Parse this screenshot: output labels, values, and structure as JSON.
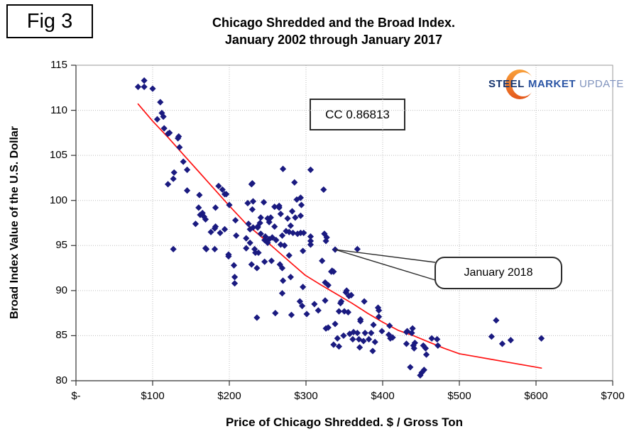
{
  "fig_label": "Fig 3",
  "title": {
    "line1": "Chicago Shredded and the Broad Index.",
    "line2": "January 2002 through January 2017"
  },
  "axes": {
    "x_label": "Price of Chicago Shredded. $ / Gross Ton",
    "y_label": "Broad Index Value of the U.S. Dollar",
    "x_tick_labels": [
      "$-",
      "$100",
      "$200",
      "$300",
      "$400",
      "$500",
      "$600",
      "$700"
    ],
    "y_tick_labels": [
      "115",
      "110",
      "105",
      "100",
      "95",
      "90",
      "85",
      "80"
    ]
  },
  "annotations": {
    "cc": "CC 0.86813",
    "callout": "January 2018",
    "callout_target": [
      338,
      94.55
    ]
  },
  "logo": {
    "steel": "STEEL",
    "market": "MARKET",
    "update": "UPDATE",
    "crescent_color_top": "#f9a13a",
    "crescent_color_bottom": "#e4571b"
  },
  "chart_data": {
    "type": "scatter",
    "title": "Chicago Shredded and the Broad Index. January 2002 through January 2017",
    "xlabel": "Price of Chicago Shredded. $ / Gross Ton",
    "ylabel": "Broad Index Value of the U.S. Dollar",
    "xlim": [
      0,
      700
    ],
    "ylim": [
      80,
      115
    ],
    "x_ticks": [
      0,
      100,
      200,
      300,
      400,
      500,
      600,
      700
    ],
    "y_ticks": [
      80,
      85,
      90,
      95,
      100,
      105,
      110,
      115
    ],
    "grid": true,
    "point_color": "#1a1a80",
    "trend_color": "#ff1212",
    "series": [
      {
        "name": "scatter",
        "points": [
          [
            81,
            112.6
          ],
          [
            89,
            113.3
          ],
          [
            89,
            112.6
          ],
          [
            100,
            112.4
          ],
          [
            110,
            110.9
          ],
          [
            106,
            109.0
          ],
          [
            112,
            109.7
          ],
          [
            114,
            109.3
          ],
          [
            115,
            108.0
          ],
          [
            120,
            107.4
          ],
          [
            122,
            107.5
          ],
          [
            134,
            107.1
          ],
          [
            133,
            106.9
          ],
          [
            135,
            105.9
          ],
          [
            140,
            104.3
          ],
          [
            145,
            103.4
          ],
          [
            128,
            103.1
          ],
          [
            127,
            102.4
          ],
          [
            120,
            101.8
          ],
          [
            145,
            101.1
          ],
          [
            127,
            94.6
          ],
          [
            170,
            94.6
          ],
          [
            161,
            100.6
          ],
          [
            160,
            99.2
          ],
          [
            162,
            98.4
          ],
          [
            167,
            98.2
          ],
          [
            156,
            97.4
          ],
          [
            181,
            96.9
          ],
          [
            186,
            101.6
          ],
          [
            191,
            101.2
          ],
          [
            196,
            100.7
          ],
          [
            182,
            99.2
          ],
          [
            165,
            98.6
          ],
          [
            169,
            97.9
          ],
          [
            176,
            96.5
          ],
          [
            169,
            94.7
          ],
          [
            181,
            94.6
          ],
          [
            200,
            99.5
          ],
          [
            224,
            99.7
          ],
          [
            229,
            101.8
          ],
          [
            231,
            99.9
          ],
          [
            230,
            99.0
          ],
          [
            225,
            97.4
          ],
          [
            227,
            96.8
          ],
          [
            231,
            97.0
          ],
          [
            237,
            97.0
          ],
          [
            222,
            95.8
          ],
          [
            227,
            95.3
          ],
          [
            233,
            94.6
          ],
          [
            229,
            92.9
          ],
          [
            236,
            92.5
          ],
          [
            199,
            93.8
          ],
          [
            206,
            92.8
          ],
          [
            207,
            91.5
          ],
          [
            207,
            90.8
          ],
          [
            199,
            94.0
          ],
          [
            209,
            96.1
          ],
          [
            208,
            97.8
          ],
          [
            194,
            100.7
          ],
          [
            194,
            96.8
          ],
          [
            188,
            96.4
          ],
          [
            182,
            97.1
          ],
          [
            222,
            94.7
          ],
          [
            234,
            94.2
          ],
          [
            238,
            94.2
          ],
          [
            236,
            87.0
          ],
          [
            230,
            101.9
          ],
          [
            245,
            99.8
          ],
          [
            265,
            99.4
          ],
          [
            270,
            103.5
          ],
          [
            259,
            99.3
          ],
          [
            267,
            98.5
          ],
          [
            250,
            98.0
          ],
          [
            252,
            97.6
          ],
          [
            254,
            98.1
          ],
          [
            241,
            98.1
          ],
          [
            240,
            97.5
          ],
          [
            237,
            97.1
          ],
          [
            241,
            96.3
          ],
          [
            247,
            96.0
          ],
          [
            252,
            95.7
          ],
          [
            259,
            97.1
          ],
          [
            246,
            95.6
          ],
          [
            250,
            95.3
          ],
          [
            256,
            95.9
          ],
          [
            261,
            95.6
          ],
          [
            246,
            93.2
          ],
          [
            266,
            92.9
          ],
          [
            269,
            92.5
          ],
          [
            255,
            93.3
          ],
          [
            265,
            99.2
          ],
          [
            270,
            91.1
          ],
          [
            269,
            89.7
          ],
          [
            260,
            87.5
          ],
          [
            269,
            96.1
          ],
          [
            267,
            95.1
          ],
          [
            272,
            95.0
          ],
          [
            274,
            96.6
          ],
          [
            276,
            98.0
          ],
          [
            278,
            96.5
          ],
          [
            280,
            97.2
          ],
          [
            282,
            98.8
          ],
          [
            283,
            96.4
          ],
          [
            285,
            102.0
          ],
          [
            286,
            98.1
          ],
          [
            288,
            100.1
          ],
          [
            289,
            96.3
          ],
          [
            281,
            87.3
          ],
          [
            280,
            91.5
          ],
          [
            278,
            93.9
          ],
          [
            293,
            100.3
          ],
          [
            294,
            99.5
          ],
          [
            293,
            98.3
          ],
          [
            293,
            96.4
          ],
          [
            296,
            94.4
          ],
          [
            296,
            90.4
          ],
          [
            292,
            88.8
          ],
          [
            295,
            88.3
          ],
          [
            301,
            87.4
          ],
          [
            297,
            96.4
          ],
          [
            306,
            103.4
          ],
          [
            306,
            96.0
          ],
          [
            306,
            95.5
          ],
          [
            306,
            95.1
          ],
          [
            311,
            88.5
          ],
          [
            316,
            87.8
          ],
          [
            323,
            101.2
          ],
          [
            324,
            96.3
          ],
          [
            327,
            95.9
          ],
          [
            326,
            95.5
          ],
          [
            321,
            93.3
          ],
          [
            325,
            90.9
          ],
          [
            325,
            88.9
          ],
          [
            326,
            85.8
          ],
          [
            329,
            90.6
          ],
          [
            329,
            85.9
          ],
          [
            333,
            92.1
          ],
          [
            334,
            92.2
          ],
          [
            336,
            92.1
          ],
          [
            336,
            84.0
          ],
          [
            367,
            94.6
          ],
          [
            345,
            88.6
          ],
          [
            343,
            87.7
          ],
          [
            350,
            87.7
          ],
          [
            355,
            87.6
          ],
          [
            352,
            89.8
          ],
          [
            356,
            89.4
          ],
          [
            346,
            88.8
          ],
          [
            353,
            90.0
          ],
          [
            359,
            89.5
          ],
          [
            371,
            86.8
          ],
          [
            371,
            86.6
          ],
          [
            376,
            88.8
          ],
          [
            375,
            84.4
          ],
          [
            377,
            85.3
          ],
          [
            370,
            83.7
          ],
          [
            369,
            84.6
          ],
          [
            367,
            85.3
          ],
          [
            362,
            85.4
          ],
          [
            361,
            84.6
          ],
          [
            357,
            85.2
          ],
          [
            349,
            85.0
          ],
          [
            343,
            83.8
          ],
          [
            341,
            84.7
          ],
          [
            338,
            86.3
          ],
          [
            382,
            84.6
          ],
          [
            385,
            85.3
          ],
          [
            388,
            86.2
          ],
          [
            390,
            84.3
          ],
          [
            387,
            83.3
          ],
          [
            394,
            88.1
          ],
          [
            395,
            87.1
          ],
          [
            395,
            87.8
          ],
          [
            399,
            85.5
          ],
          [
            408,
            85.1
          ],
          [
            410,
            84.7
          ],
          [
            413,
            84.8
          ],
          [
            409,
            86.1
          ],
          [
            431,
            85.4
          ],
          [
            431,
            84.1
          ],
          [
            432,
            85.5
          ],
          [
            439,
            85.8
          ],
          [
            438,
            85.3
          ],
          [
            442,
            84.2
          ],
          [
            440,
            83.9
          ],
          [
            441,
            83.6
          ],
          [
            453,
            83.9
          ],
          [
            456,
            83.6
          ],
          [
            457,
            82.9
          ],
          [
            471,
            84.6
          ],
          [
            472,
            83.9
          ],
          [
            464,
            84.7
          ],
          [
            436,
            81.5
          ],
          [
            451,
            80.9
          ],
          [
            454,
            81.2
          ],
          [
            449,
            80.6
          ],
          [
            548,
            86.7
          ],
          [
            542,
            84.9
          ],
          [
            556,
            84.1
          ],
          [
            567,
            84.5
          ],
          [
            607,
            84.7
          ],
          [
            338,
            94.55
          ]
        ]
      }
    ],
    "trendline": {
      "points": [
        [
          81,
          110.7
        ],
        [
          100,
          108.8
        ],
        [
          120,
          107.0
        ],
        [
          140,
          105.1
        ],
        [
          160,
          103.2
        ],
        [
          180,
          101.3
        ],
        [
          200,
          99.4
        ],
        [
          222,
          97.4
        ],
        [
          240,
          96.1
        ],
        [
          260,
          94.6
        ],
        [
          280,
          93.1
        ],
        [
          299,
          91.7
        ],
        [
          320,
          90.6
        ],
        [
          340,
          89.6
        ],
        [
          360,
          88.6
        ],
        [
          380,
          87.5
        ],
        [
          400,
          86.5
        ],
        [
          420,
          85.6
        ],
        [
          440,
          85.0
        ],
        [
          460,
          84.3
        ],
        [
          480,
          83.6
        ],
        [
          500,
          83.0
        ],
        [
          520,
          82.7
        ],
        [
          540,
          82.4
        ],
        [
          560,
          82.1
        ],
        [
          580,
          81.8
        ],
        [
          607,
          81.4
        ]
      ]
    }
  }
}
